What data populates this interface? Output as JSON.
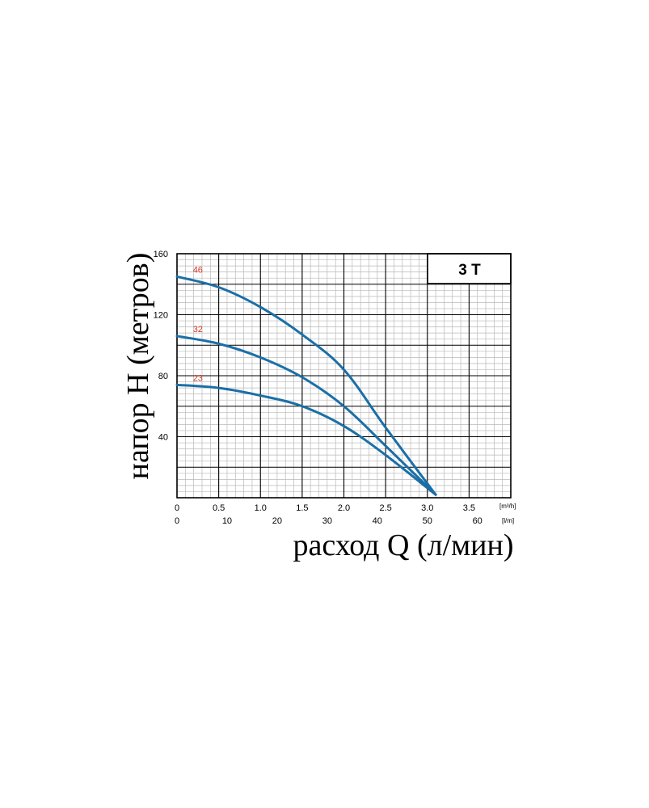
{
  "chart_data": {
    "type": "line",
    "model_label": "3 T",
    "ylabel": "напор H (метров)",
    "xlabel": "расход Q (л/мин)",
    "x_unit_m3h": "[m³/h]",
    "x_unit_lmin": "[l/m]",
    "xlim_m3h": [
      0,
      4
    ],
    "ylim": [
      0,
      160
    ],
    "y_ticks": [
      40,
      80,
      120,
      160
    ],
    "x_ticks_m3h": [
      "0",
      "0.5",
      "1.0",
      "1.5",
      "2.0",
      "2.5",
      "3.0",
      "3.5"
    ],
    "x_ticks_lmin": [
      "0",
      "10",
      "20",
      "30",
      "40",
      "50",
      "60"
    ],
    "grid": true,
    "series": [
      {
        "name": "46",
        "x": [
          0,
          0.5,
          1.0,
          1.5,
          2.0,
          2.5,
          3.1
        ],
        "y": [
          145,
          138,
          125,
          107,
          84,
          46,
          2
        ]
      },
      {
        "name": "32",
        "x": [
          0,
          0.5,
          1.0,
          1.5,
          2.0,
          2.5,
          3.1
        ],
        "y": [
          106,
          101,
          92,
          79,
          60,
          34,
          2
        ]
      },
      {
        "name": "23",
        "x": [
          0,
          0.5,
          1.0,
          1.5,
          2.0,
          2.5,
          3.1
        ],
        "y": [
          74,
          72,
          67,
          60,
          47,
          28,
          2
        ]
      }
    ],
    "colors": {
      "curve": "#1a6fa8",
      "curve_label": "#d03a2e",
      "grid_minor": "#b9b9b9",
      "grid_major": "#000000"
    }
  }
}
